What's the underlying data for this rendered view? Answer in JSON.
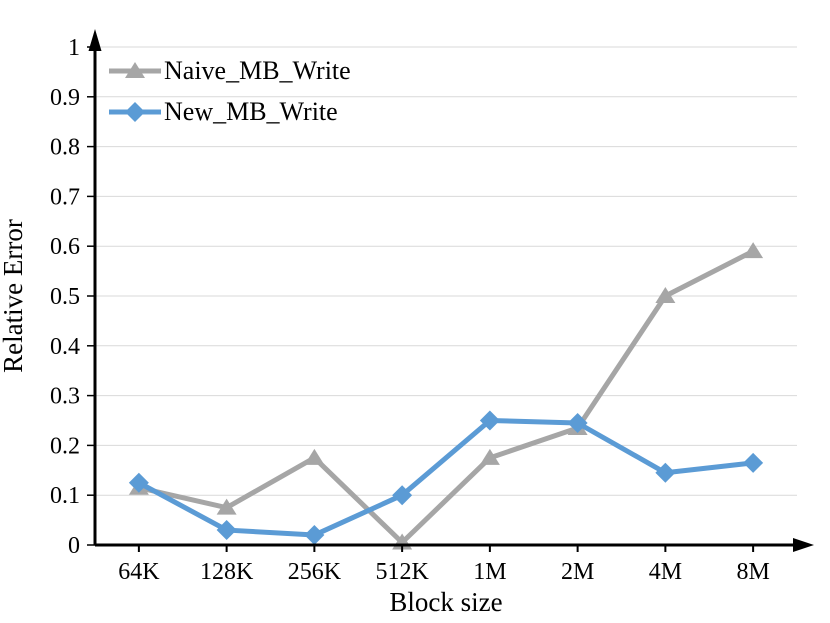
{
  "chart_data": {
    "type": "line",
    "title": "",
    "xlabel": "Block size",
    "ylabel": "Relative Error",
    "categories": [
      "64K",
      "128K",
      "256K",
      "512K",
      "1M",
      "2M",
      "4M",
      "8M"
    ],
    "series": [
      {
        "name": "Naive_MB_Write",
        "color": "#a6a6a6",
        "marker": "triangle",
        "values": [
          0.115,
          0.075,
          0.175,
          0.005,
          0.175,
          0.235,
          0.5,
          0.59
        ]
      },
      {
        "name": "New_MB_Write",
        "color": "#5b9bd5",
        "marker": "diamond",
        "values": [
          0.125,
          0.03,
          0.02,
          0.1,
          0.25,
          0.245,
          0.145,
          0.165
        ]
      }
    ],
    "ylim": [
      0,
      1
    ],
    "ytick_step": 0.1,
    "ytick_labels": [
      "0",
      "0.1",
      "0.2",
      "0.3",
      "0.4",
      "0.5",
      "0.6",
      "0.7",
      "0.8",
      "0.9",
      "1"
    ],
    "grid": "horizontal",
    "gridline_color": "#d9d9d9",
    "axis_color": "#000000",
    "legend_position": "top-left"
  }
}
